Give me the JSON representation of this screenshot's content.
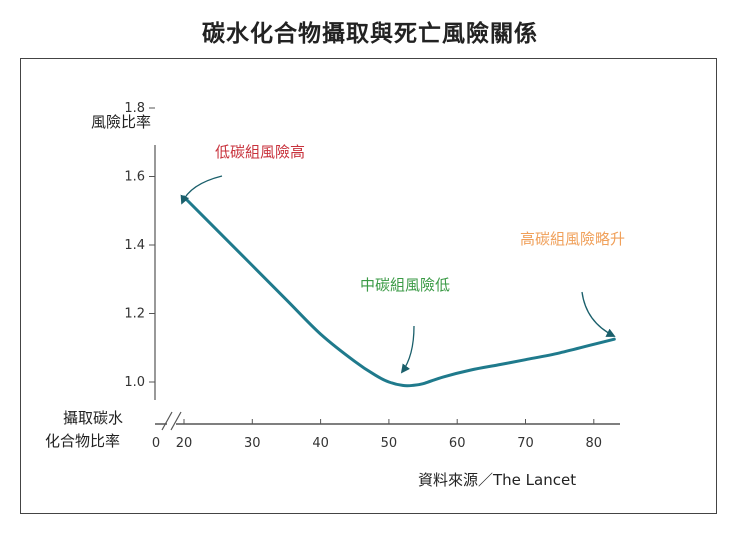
{
  "page": {
    "title": "碳水化合物攝取與死亡風險關係"
  },
  "chart_data": {
    "type": "line",
    "title": "碳水化合物攝取與死亡風險關係",
    "ylabel": "風險比率",
    "xlabel_line1": "攝取碳水",
    "xlabel_line2": "化合物比率",
    "xlim": [
      0,
      83
    ],
    "ylim": [
      0.9,
      1.8
    ],
    "x_ticks": [
      "0",
      "20",
      "30",
      "40",
      "50",
      "60",
      "70",
      "80"
    ],
    "y_ticks": [
      "1.0",
      "1.2",
      "1.4",
      "1.6",
      "1.8"
    ],
    "series": [
      {
        "name": "風險比率",
        "color": "#1f7a8c",
        "x": [
          20,
          25,
          30,
          35,
          40,
          45,
          48,
          50,
          52,
          53.5,
          55,
          58,
          62,
          66,
          70,
          75,
          80,
          83
        ],
        "y": [
          1.54,
          1.44,
          1.34,
          1.24,
          1.14,
          1.06,
          1.02,
          1.0,
          0.99,
          0.99,
          0.995,
          1.015,
          1.035,
          1.05,
          1.065,
          1.085,
          1.11,
          1.125
        ]
      }
    ],
    "annotations": {
      "high": "低碳組風險高",
      "low": "中碳組風險低",
      "rise": "高碳組風險略升"
    },
    "source": "資料來源／The Lancet"
  },
  "colors": {
    "line": "#1f7a8c",
    "high": "#c8323c",
    "low": "#3a9a45",
    "rise": "#f0a05a"
  }
}
